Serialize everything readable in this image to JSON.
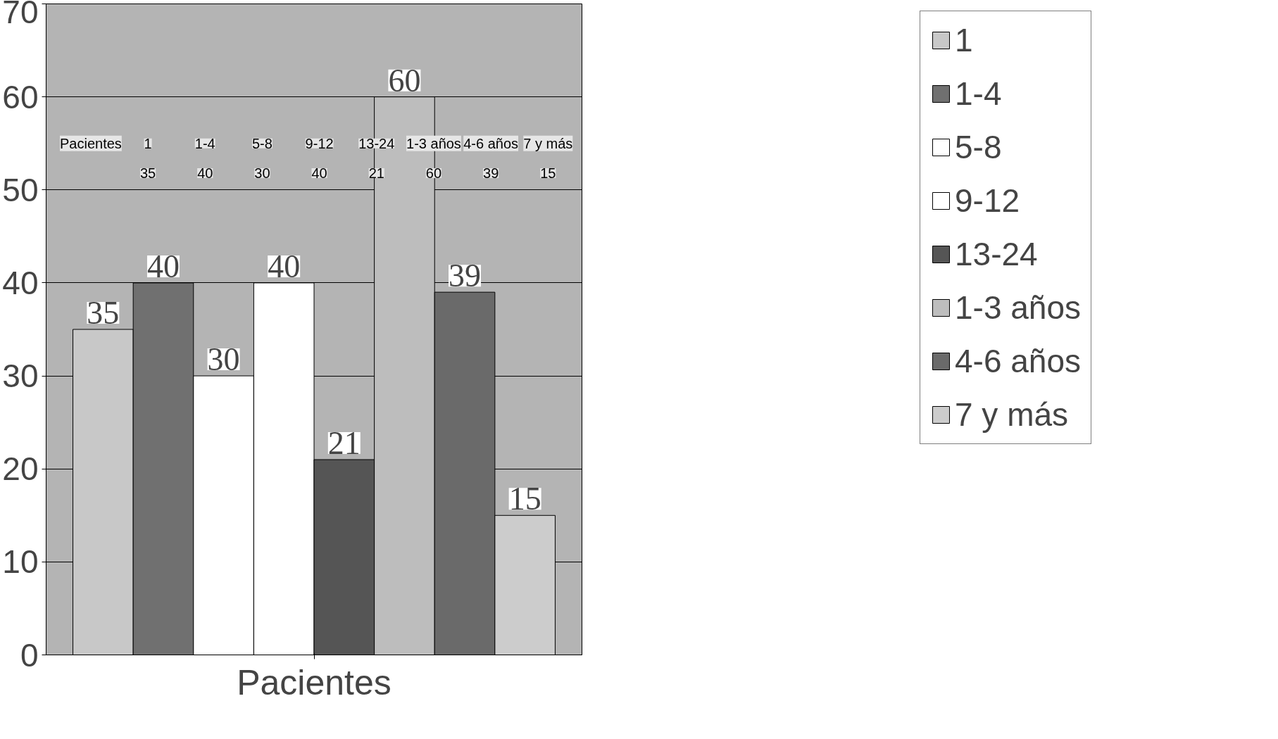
{
  "chart_data": {
    "type": "bar",
    "xlabel": "Pacientes",
    "categories": [
      null
    ],
    "series": [
      {
        "name": "1",
        "color": "#c8c8c8",
        "values": [
          35
        ]
      },
      {
        "name": "1-4",
        "color": "#707070",
        "values": [
          40
        ]
      },
      {
        "name": "5-8",
        "color": "#ffffff",
        "values": [
          30
        ]
      },
      {
        "name": "9-12",
        "color": "#ffffff",
        "values": [
          40
        ]
      },
      {
        "name": "13-24",
        "color": "#555555",
        "values": [
          21
        ]
      },
      {
        "name": "1-3 años",
        "color": "#bdbdbd",
        "values": [
          60
        ]
      },
      {
        "name": "4-6 años",
        "color": "#6a6a6a",
        "values": [
          39
        ]
      },
      {
        "name": "7 y más",
        "color": "#cccccc",
        "values": [
          15
        ]
      }
    ],
    "ylim": [
      0,
      70
    ],
    "yticks": [
      0,
      10,
      20,
      30,
      40,
      50,
      60,
      70
    ],
    "grid": "y",
    "legend": "right",
    "data_labels": true,
    "annotations": [
      "Pacientes",
      "1",
      "1-4",
      "5-8",
      "9-12",
      "13-24",
      "1-3 años",
      "4-6 años",
      "7 y más",
      "35",
      "40",
      "30",
      "40",
      "21",
      "60",
      "39",
      "15"
    ]
  }
}
